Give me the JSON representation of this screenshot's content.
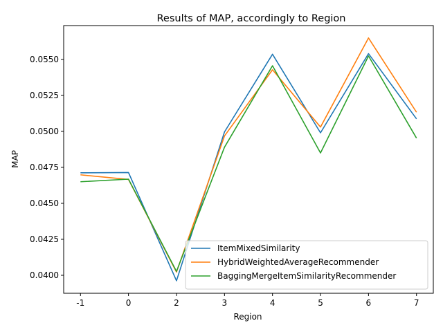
{
  "chart_data": {
    "type": "line",
    "title": "Results of MAP, accordingly to Region",
    "xlabel": "Region",
    "ylabel": "MAP",
    "categories": [
      "-1",
      "0",
      "2",
      "3",
      "4",
      "5",
      "6",
      "7"
    ],
    "ylim": [
      0.03875,
      0.05735
    ],
    "yticks": [
      "0.0400",
      "0.0425",
      "0.0450",
      "0.0475",
      "0.0500",
      "0.0525",
      "0.0550"
    ],
    "grid": false,
    "legend_position": "lower-right",
    "series": [
      {
        "name": "ItemMixedSimilarity",
        "color": "#1f77b4",
        "values": [
          0.04712,
          0.04714,
          0.03962,
          0.04996,
          0.05536,
          0.0499,
          0.0554,
          0.05087
        ]
      },
      {
        "name": "HybridWeightedAverageRecommender",
        "color": "#ff7f0e",
        "values": [
          0.04698,
          0.04666,
          0.04022,
          0.04968,
          0.05428,
          0.0503,
          0.05649,
          0.05133
        ]
      },
      {
        "name": "BaggingMergeItemSimilarityRecommender",
        "color": "#2ca02c",
        "values": [
          0.0465,
          0.04668,
          0.04027,
          0.0489,
          0.05456,
          0.0485,
          0.05524,
          0.04953
        ]
      }
    ]
  }
}
